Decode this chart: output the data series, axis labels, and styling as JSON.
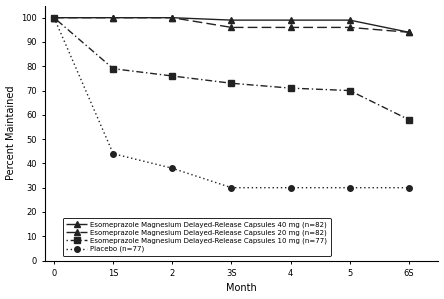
{
  "xlabel": "Month",
  "ylabel": "Percent Maintained",
  "xlim": [
    -0.15,
    6.5
  ],
  "ylim": [
    0,
    105
  ],
  "yticks": [
    0,
    10,
    20,
    30,
    40,
    50,
    60,
    70,
    80,
    90,
    100
  ],
  "xticks": [
    0,
    1,
    2,
    3,
    4,
    5,
    6
  ],
  "xticklabels": [
    "0",
    "1S",
    "2",
    "3S",
    "4",
    "5",
    "6S"
  ],
  "series": [
    {
      "label": "Esomeprazole Magnesium Delayed-Release Capsules 40 mg (n=82)",
      "x": [
        0,
        1,
        2,
        3,
        4,
        5,
        6
      ],
      "y": [
        100,
        100,
        100,
        99,
        99,
        99,
        94
      ],
      "color": "#222222",
      "marker": "^",
      "markersize": 4,
      "linestyle": "solid",
      "linewidth": 1.0
    },
    {
      "label": "Esomeprazole Magnesium Delayed-Release Capsules 20 mg (n=82)",
      "x": [
        0,
        1,
        2,
        3,
        4,
        5,
        6
      ],
      "y": [
        100,
        100,
        100,
        96,
        96,
        96,
        94
      ],
      "color": "#222222",
      "marker": "^",
      "markersize": 4,
      "linestyle": "dashed_long",
      "linewidth": 1.0
    },
    {
      "label": "Esomeprazole Magnesium Delayed-Release Capsules 10 mg (n=77)",
      "x": [
        0,
        1,
        2,
        3,
        4,
        5,
        6
      ],
      "y": [
        100,
        79,
        76,
        73,
        71,
        70,
        58
      ],
      "color": "#222222",
      "marker": "s",
      "markersize": 4,
      "linestyle": "dotdash",
      "linewidth": 1.0
    },
    {
      "label": "Placebo (n=77)",
      "x": [
        0,
        1,
        2,
        3,
        4,
        5,
        6
      ],
      "y": [
        100,
        44,
        38,
        30,
        30,
        30,
        30
      ],
      "color": "#222222",
      "marker": "o",
      "markersize": 4,
      "linestyle": "dotted_dash",
      "linewidth": 1.0
    }
  ],
  "legend_fontsize": 5.0,
  "axis_fontsize": 7,
  "tick_fontsize": 6
}
